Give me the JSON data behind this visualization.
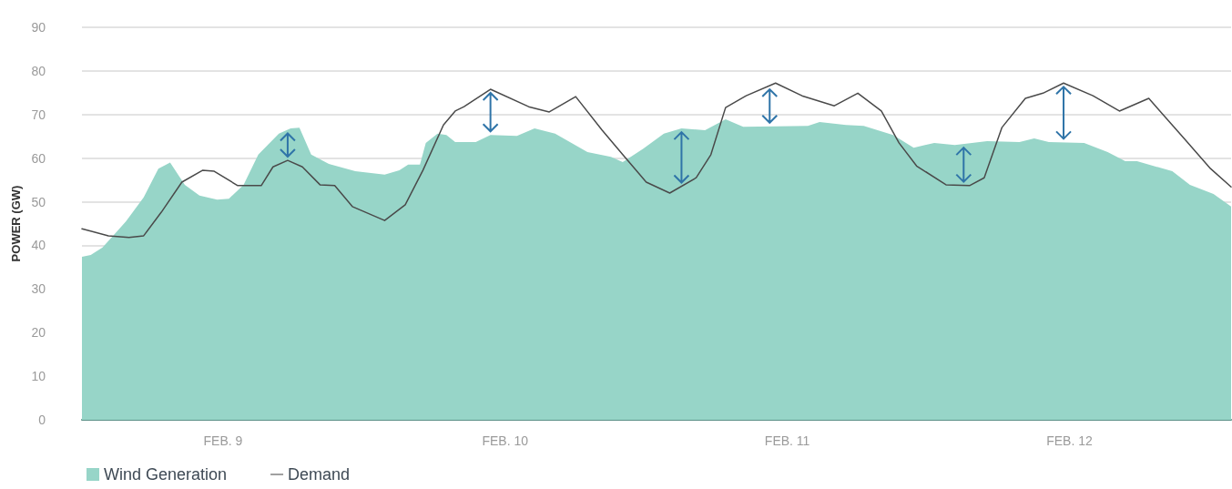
{
  "chart_data": {
    "type": "area",
    "ylabel": "POWER (GW)",
    "xlim": [
      "--02-08T12:00",
      "--02-12T13:45"
    ],
    "xticks": [
      {
        "value": "--02-09",
        "label": "FEB. 9"
      },
      {
        "value": "--02-10",
        "label": "FEB. 10"
      },
      {
        "value": "--02-11",
        "label": "FEB. 11"
      },
      {
        "value": "--02-12",
        "label": "FEB. 12"
      }
    ],
    "ylim": [
      0,
      90
    ],
    "yticks": [
      0,
      10,
      20,
      30,
      40,
      50,
      60,
      70,
      80,
      90
    ],
    "grid": "y",
    "legend": "bottom left",
    "marker": "none",
    "series": [
      {
        "name": "Wind Generation",
        "color": "#97d5c8",
        "x": [
          "--02-08T12:00",
          "--02-08T12:45",
          "--02-08T13:45",
          "--02-08T15:45",
          "--02-08T17:15",
          "--02-08T18:30",
          "--02-08T19:30",
          "--02-08T20:45",
          "--02-08T22:00",
          "--02-08T23:30",
          "--02-09T00:30",
          "--02-09T01:45",
          "--02-09T03:00",
          "--02-09T04:45",
          "--02-09T05:45",
          "--02-09T06:30",
          "--02-09T07:30",
          "--02-09T09:00",
          "--02-09T11:15",
          "--02-09T13:45",
          "--02-09T15:00",
          "--02-09T15:45",
          "--02-09T16:45",
          "--02-09T17:15",
          "--02-09T18:15",
          "--02-09T19:00",
          "--02-09T19:45",
          "--02-09T21:30",
          "--02-09T22:45",
          "--02-10T01:00",
          "--02-10T02:30",
          "--02-10T04:15",
          "--02-10T07:00",
          "--02-10T09:00",
          "--02-10T10:00",
          "--02-10T11:45",
          "--02-10T13:30",
          "--02-10T15:00",
          "--02-10T17:00",
          "--02-10T18:45",
          "--02-10T20:15",
          "--02-11T01:45",
          "--02-11T02:45",
          "--02-11T05:00",
          "--02-11T06:30",
          "--02-11T09:00",
          "--02-11T10:45",
          "--02-11T12:30",
          "--02-11T14:15",
          "--02-11T17:00",
          "--02-11T19:45",
          "--02-11T21:00",
          "--02-11T22:15",
          "--02-12T01:15",
          "--02-12T03:15",
          "--02-12T04:45",
          "--02-12T05:45",
          "--02-12T08:45",
          "--02-12T10:15",
          "--02-12T12:15",
          "--02-12T13:45"
        ],
        "values": [
          37.4,
          37.8,
          39.5,
          45.5,
          51,
          57.6,
          59,
          53.9,
          51.4,
          50.5,
          50.7,
          53.9,
          60.8,
          65.6,
          66.8,
          67,
          60.8,
          58.7,
          57,
          56.2,
          57.2,
          58.5,
          58.5,
          63.5,
          65.6,
          65.3,
          63.7,
          63.7,
          65.3,
          65.1,
          66.8,
          65.6,
          61.4,
          60.3,
          59.1,
          62.2,
          65.6,
          66.8,
          66.4,
          68.9,
          67.2,
          67.4,
          68.3,
          67.6,
          67.4,
          65.3,
          62.4,
          63.5,
          63,
          63.9,
          63.7,
          64.5,
          63.7,
          63.5,
          61.4,
          59.3,
          59.3,
          57,
          53.9,
          51.8,
          48.9
        ]
      },
      {
        "name": "Demand",
        "type": "line",
        "color": "#4a4a4a",
        "line_style": "solid",
        "x": [
          "--02-08T12:00",
          "--02-08T14:15",
          "--02-08T16:00",
          "--02-08T17:15",
          "--02-08T18:45",
          "--02-08T20:30",
          "--02-08T22:15",
          "--02-08T23:15",
          "--02-09T01:15",
          "--02-09T03:15",
          "--02-09T04:15",
          "--02-09T05:30",
          "--02-09T06:45",
          "--02-09T08:15",
          "--02-09T09:30",
          "--02-09T11:00",
          "--02-09T13:45",
          "--02-09T15:30",
          "--02-09T17:00",
          "--02-09T18:45",
          "--02-09T19:45",
          "--02-09T20:30",
          "--02-09T22:45",
          "--02-10T02:00",
          "--02-10T03:45",
          "--02-10T06:00",
          "--02-10T08:15",
          "--02-10T10:00",
          "--02-10T12:00",
          "--02-10T14:00",
          "--02-10T16:15",
          "--02-10T17:30",
          "--02-10T18:45",
          "--02-10T20:30",
          "--02-10T23:00",
          "--02-11T01:15",
          "--02-11T04:00",
          "--02-11T06:00",
          "--02-11T08:00",
          "--02-11T09:30",
          "--02-11T11:00",
          "--02-11T13:30",
          "--02-11T15:30",
          "--02-11T16:45",
          "--02-11T18:15",
          "--02-11T20:15",
          "--02-11T21:45",
          "--02-11T23:30",
          "--02-12T02:00",
          "--02-12T04:15",
          "--02-12T06:45",
          "--02-12T09:45",
          "--02-12T12:00",
          "--02-12T13:45"
        ],
        "values": [
          43.8,
          42.2,
          41.8,
          42.2,
          47.6,
          54.5,
          57.2,
          57,
          53.7,
          53.7,
          58,
          59.5,
          58,
          53.9,
          53.7,
          48.9,
          45.7,
          49.3,
          57.2,
          67.6,
          70.8,
          71.8,
          75.8,
          71.8,
          70.6,
          74.1,
          66.4,
          60.8,
          54.5,
          52,
          55.5,
          60.8,
          71.6,
          74.3,
          77.2,
          74.3,
          72,
          74.9,
          70.8,
          63.5,
          58.2,
          53.9,
          53.7,
          55.5,
          67,
          73.7,
          74.9,
          77.2,
          74.3,
          70.8,
          73.7,
          64.5,
          57.6,
          53.4
        ]
      }
    ]
  }
}
